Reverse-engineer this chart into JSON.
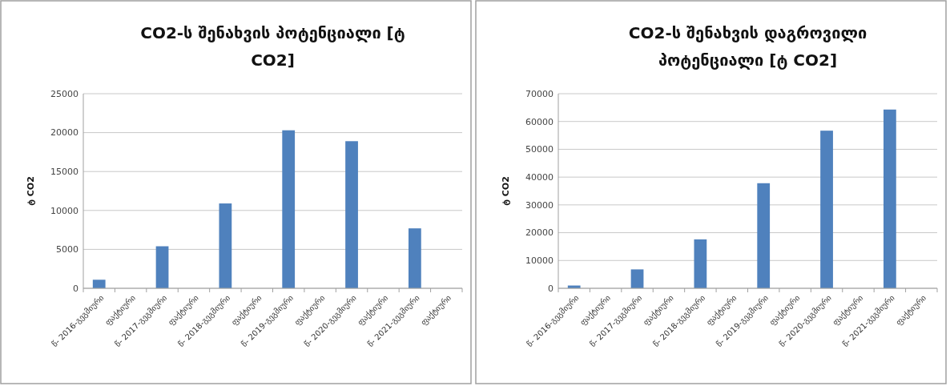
{
  "chart_data": [
    {
      "type": "bar",
      "title": "CO2-ს შენახვის პოტენციალი [ტ CO2]",
      "ylabel": "ტ CO2",
      "categories": [
        "წ- 2016-გეგმიური",
        "ფაქტიური",
        "წ- 2017-გეგმიური",
        "ფაქტიური",
        "წ- 2018-გეგმიური",
        "ფაქტიური",
        "წ- 2019-გეგმიური",
        "ფაქტიური",
        "წ- 2020-გეგმიური",
        "ფაქტიური",
        "წ- 2021-გეგმიური",
        "ფაქტიური"
      ],
      "values": [
        1100,
        null,
        5400,
        null,
        10900,
        null,
        20300,
        null,
        18900,
        null,
        7700,
        null
      ],
      "color": "#4f81bd",
      "ylim": [
        0,
        25000
      ],
      "yticks": [
        0,
        5000,
        10000,
        15000,
        20000,
        25000
      ],
      "grid": "y"
    },
    {
      "type": "bar",
      "title": "CO2-ს შენახვის დაგროვილი პოტენციალი [ტ CO2]",
      "ylabel": "ტ CO2",
      "categories": [
        "წ- 2016-გეგმიური",
        "ფაქტიური",
        "წ- 2017-გეგმიური",
        "ფაქტიური",
        "წ- 2018-გეგმიური",
        "ფაქტიური",
        "წ- 2019-გეგმიური",
        "ფაქტიური",
        "წ- 2020-გეგმიური",
        "ფაქტიური",
        "წ- 2021-გეგმიური",
        "ფაქტიური"
      ],
      "values": [
        1000,
        null,
        6800,
        null,
        17600,
        null,
        37800,
        null,
        56700,
        null,
        64300,
        null
      ],
      "color": "#4f81bd",
      "ylim": [
        0,
        70000
      ],
      "yticks": [
        0,
        10000,
        20000,
        30000,
        40000,
        50000,
        60000,
        70000
      ],
      "grid": "y"
    }
  ]
}
